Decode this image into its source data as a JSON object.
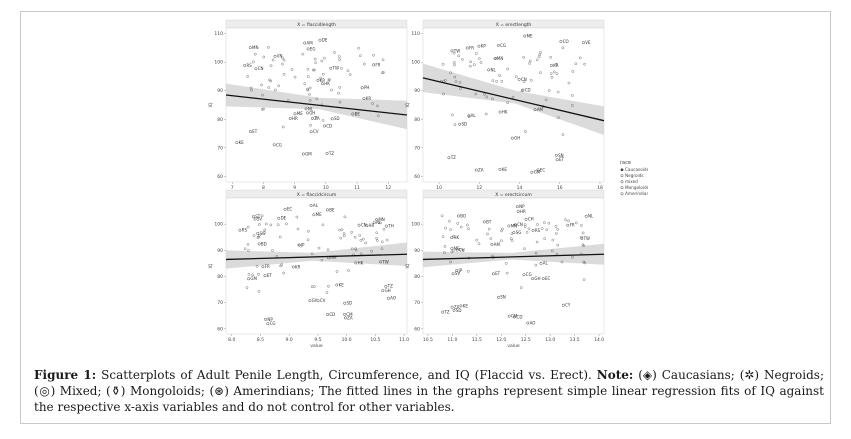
{
  "panels": [
    {
      "strip": "X = flaccidlength",
      "xticks": [
        "7",
        "8",
        "9",
        "10",
        "11",
        "12"
      ],
      "xlim": [
        6.8,
        12.6
      ],
      "yticks": [
        "60",
        "70",
        "80",
        "90",
        "100",
        "110"
      ],
      "ylim": [
        58,
        112
      ],
      "fit": [
        [
          6.8,
          88.5
        ],
        [
          12.6,
          81.5
        ]
      ],
      "band": [
        [
          6.8,
          84.5,
          92.5
        ],
        [
          9.8,
          83.5,
          87.5
        ],
        [
          12.6,
          76.5,
          86.5
        ]
      ],
      "labels": [
        "HK",
        "CN",
        "KR",
        "KP",
        "TW",
        "MN",
        "ME",
        "BE",
        "NL",
        "AM",
        "FR",
        "VN",
        "RS",
        "HR",
        "PH",
        "DE",
        "EG",
        "CV",
        "CG",
        "CD",
        "TZ",
        "ZA",
        "KE",
        "GH",
        "SD",
        "ET",
        "GM"
      ]
    },
    {
      "strip": "X = erectlength",
      "xticks": [
        "10",
        "12",
        "14",
        "16",
        "18"
      ],
      "xlim": [
        9.2,
        18.2
      ],
      "yticks": [
        "60",
        "70",
        "80",
        "90",
        "100",
        "110"
      ],
      "ylim": [
        58,
        112
      ],
      "fit": [
        [
          9.2,
          94.5
        ],
        [
          18.2,
          79.5
        ]
      ],
      "band": [
        [
          9.2,
          89.5,
          99.5
        ],
        [
          13.8,
          85.5,
          90
        ],
        [
          18.2,
          74.5,
          84.5
        ]
      ],
      "labels": [
        "HK",
        "CN",
        "KR",
        "KP",
        "TW",
        "MN",
        "ME",
        "AL",
        "NL",
        "AM",
        "FR",
        "VE",
        "CO",
        "CG",
        "CD",
        "KE",
        "SD",
        "GH",
        "ET",
        "SN",
        "TZ",
        "ZA",
        "GM",
        "EC"
      ]
    },
    {
      "strip": "X = flaccidcircum",
      "xticks": [
        "8.0",
        "8.5",
        "9.0",
        "9.5",
        "10.0",
        "10.5",
        "11.0"
      ],
      "xlim": [
        7.9,
        11.05
      ],
      "yticks": [
        "60",
        "70",
        "80",
        "90",
        "100"
      ],
      "ylim": [
        58,
        110
      ],
      "fit": [
        [
          7.9,
          86.5
        ],
        [
          11.05,
          88.5
        ]
      ],
      "band": [
        [
          7.9,
          83,
          90
        ],
        [
          9.4,
          86,
          89
        ],
        [
          11.05,
          84,
          93
        ]
      ],
      "labels": [
        "HK",
        "SG",
        "CN",
        "MN",
        "TW",
        "JP",
        "KR",
        "ME",
        "NL",
        "AL",
        "FR",
        "AM",
        "BE",
        "DE",
        "HR",
        "RS",
        "BD",
        "TH",
        "ST",
        "SV",
        "EC",
        "NP",
        "CV",
        "CG",
        "CD",
        "ZA",
        "TZ",
        "KE",
        "AO",
        "GH",
        "SD",
        "CM",
        "GY",
        "GM",
        "ET"
      ]
    },
    {
      "strip": "X = erectcircum",
      "xticks": [
        "10.5",
        "11.0",
        "11.5",
        "12.0",
        "12.5",
        "13.0",
        "13.5",
        "14.0"
      ],
      "xlim": [
        10.4,
        14.1
      ],
      "yticks": [
        "60",
        "70",
        "80",
        "90",
        "100"
      ],
      "ylim": [
        58,
        110
      ],
      "fit": [
        [
          10.4,
          86.5
        ],
        [
          14.1,
          88.5
        ]
      ],
      "band": [
        [
          10.4,
          83.5,
          89.5
        ],
        [
          12.2,
          86.5,
          89
        ],
        [
          14.1,
          84.5,
          92.5
        ]
      ],
      "labels": [
        "HK",
        "SG",
        "CN",
        "MN",
        "JP",
        "ME",
        "TW",
        "NL",
        "AL",
        "FR",
        "AM",
        "CH",
        "HR",
        "RS",
        "BO",
        "BT",
        "SV",
        "EC",
        "NP",
        "CV",
        "CG",
        "CD",
        "TZ",
        "ZA",
        "AO",
        "KE",
        "GH",
        "SD",
        "CY",
        "GM",
        "SN",
        "ET"
      ]
    }
  ],
  "x_axis_title": "value",
  "y_axis_title": "IQ",
  "legend": {
    "title": "race",
    "entries": [
      "Caucasoids",
      "Negroids",
      "mixed",
      "Mongoloids",
      "Amerindians"
    ]
  },
  "caption": {
    "label": "Figure 1:",
    "text1": " Scatterplots of Adult Penile Length, Circumference, and IQ (Flaccid vs. Erect). ",
    "note_label": "Note:",
    "text2": " (◈) Caucasians; (✲) Negroids; (◎) Mixed; (⚱) Mongoloids; (⊛) Amerindians; The fitted lines in the graphs represent simple linear regression fits of IQ against the respective x-axis variables and do not control for other variables."
  }
}
